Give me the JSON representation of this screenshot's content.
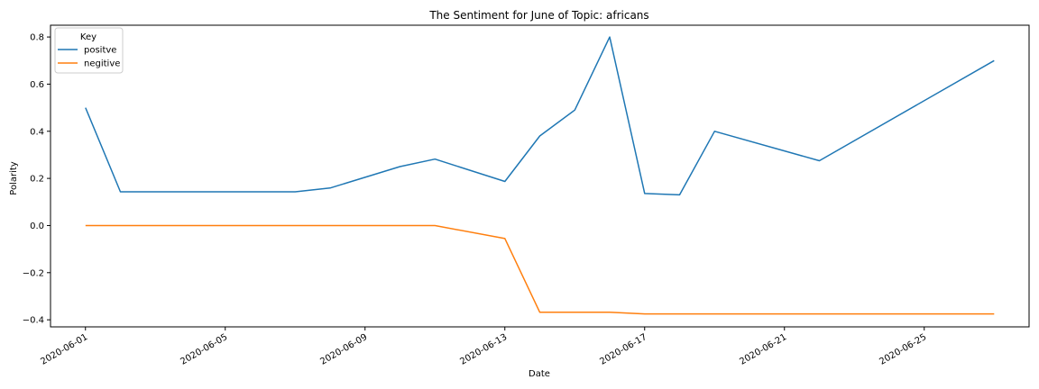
{
  "chart_data": {
    "type": "line",
    "title": "The Sentiment for June of Topic: africans",
    "xlabel": "Date",
    "ylabel": "Polarity",
    "x": [
      "2020-06-01",
      "2020-06-02",
      "2020-06-07",
      "2020-06-08",
      "2020-06-10",
      "2020-06-11",
      "2020-06-13",
      "2020-06-14",
      "2020-06-15",
      "2020-06-16",
      "2020-06-17",
      "2020-06-18",
      "2020-06-19",
      "2020-06-22",
      "2020-06-27"
    ],
    "xlim": [
      "2020-05-31",
      "2020-06-28"
    ],
    "xticks": [
      "2020-06-01",
      "2020-06-05",
      "2020-06-09",
      "2020-06-13",
      "2020-06-17",
      "2020-06-21",
      "2020-06-25"
    ],
    "ylim": [
      -0.43,
      0.85
    ],
    "yticks": [
      -0.4,
      -0.2,
      0.0,
      0.2,
      0.4,
      0.6,
      0.8
    ],
    "ytick_labels": [
      "−0.4",
      "−0.2",
      "0.0",
      "0.2",
      "0.4",
      "0.6",
      "0.8"
    ],
    "legend_title": "Key",
    "legend_position": "top-left",
    "grid": false,
    "series": [
      {
        "name": "positve",
        "color": "#1f77b4",
        "values": [
          0.5,
          0.143,
          0.143,
          0.159,
          0.25,
          0.282,
          0.187,
          0.38,
          0.49,
          0.8,
          0.136,
          0.13,
          0.4,
          0.275,
          0.7
        ]
      },
      {
        "name": "negitive",
        "color": "#ff7f0e",
        "values": [
          0.0,
          0.0,
          0.0,
          0.0,
          0.0,
          0.0,
          -0.055,
          -0.368,
          -0.368,
          -0.368,
          -0.375,
          -0.375,
          -0.375,
          -0.375,
          -0.375
        ]
      }
    ]
  }
}
